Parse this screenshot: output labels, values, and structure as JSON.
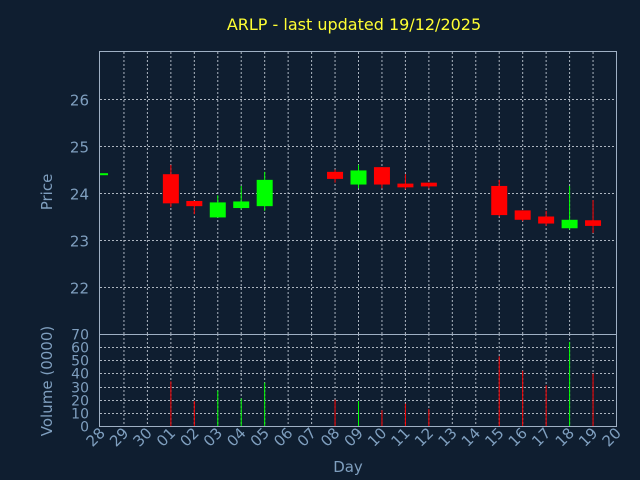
{
  "colors": {
    "background": "#0f1e30",
    "title": "#ffff33",
    "text": "#7f9fbf",
    "up": "#00ff00",
    "down": "#ff0000"
  },
  "chart_data": {
    "type": "candlestick",
    "title": "ARLP - last updated 19/12/2025",
    "xlabel": "Day",
    "ylabel": "Price",
    "volume_label": "Volume (0000)",
    "grid": true,
    "categories": [
      "28",
      "29",
      "30",
      "01",
      "02",
      "03",
      "04",
      "05",
      "06",
      "07",
      "08",
      "09",
      "10",
      "11",
      "12",
      "13",
      "14",
      "15",
      "16",
      "17",
      "18",
      "19",
      "20"
    ],
    "price_ylim": [
      21.0,
      27.0
    ],
    "price_ticks": [
      22,
      23,
      24,
      25,
      26
    ],
    "volume_ylim": [
      0,
      70
    ],
    "volume_ticks": [
      0,
      10,
      20,
      30,
      40,
      50,
      60,
      70
    ],
    "candles": [
      {
        "day": "28",
        "open": 24.4,
        "high": 24.4,
        "low": 24.4,
        "close": 24.4
      },
      {
        "day": "01",
        "open": 24.4,
        "high": 24.6,
        "low": 23.7,
        "close": 23.78
      },
      {
        "day": "02",
        "open": 23.83,
        "high": 23.83,
        "low": 23.55,
        "close": 23.72
      },
      {
        "day": "03",
        "open": 23.48,
        "high": 23.95,
        "low": 23.48,
        "close": 23.8
      },
      {
        "day": "04",
        "open": 23.68,
        "high": 24.15,
        "low": 23.65,
        "close": 23.82
      },
      {
        "day": "05",
        "open": 23.72,
        "high": 24.45,
        "low": 23.62,
        "close": 24.28
      },
      {
        "day": "08",
        "open": 24.45,
        "high": 24.5,
        "low": 24.22,
        "close": 24.3
      },
      {
        "day": "09",
        "open": 24.18,
        "high": 24.6,
        "low": 24.1,
        "close": 24.48
      },
      {
        "day": "10",
        "open": 24.55,
        "high": 24.55,
        "low": 24.1,
        "close": 24.18
      },
      {
        "day": "11",
        "open": 24.2,
        "high": 24.4,
        "low": 24.08,
        "close": 24.12
      },
      {
        "day": "12",
        "open": 24.22,
        "high": 24.22,
        "low": 24.1,
        "close": 24.14
      },
      {
        "day": "15",
        "open": 24.15,
        "high": 24.28,
        "low": 23.5,
        "close": 23.53
      },
      {
        "day": "16",
        "open": 23.63,
        "high": 23.63,
        "low": 23.4,
        "close": 23.43
      },
      {
        "day": "17",
        "open": 23.5,
        "high": 23.62,
        "low": 23.3,
        "close": 23.35
      },
      {
        "day": "18",
        "open": 23.25,
        "high": 24.15,
        "low": 23.22,
        "close": 23.43
      },
      {
        "day": "19",
        "open": 23.42,
        "high": 23.85,
        "low": 23.15,
        "close": 23.3
      }
    ],
    "volume": [
      {
        "day": "01",
        "value": 34,
        "dir": "down"
      },
      {
        "day": "02",
        "value": 19,
        "dir": "down"
      },
      {
        "day": "03",
        "value": 27,
        "dir": "up"
      },
      {
        "day": "04",
        "value": 21,
        "dir": "up"
      },
      {
        "day": "05",
        "value": 33,
        "dir": "up"
      },
      {
        "day": "08",
        "value": 20,
        "dir": "down"
      },
      {
        "day": "09",
        "value": 19,
        "dir": "up"
      },
      {
        "day": "10",
        "value": 12,
        "dir": "down"
      },
      {
        "day": "11",
        "value": 17,
        "dir": "down"
      },
      {
        "day": "12",
        "value": 13,
        "dir": "down"
      },
      {
        "day": "15",
        "value": 53,
        "dir": "down"
      },
      {
        "day": "16",
        "value": 42,
        "dir": "down"
      },
      {
        "day": "17",
        "value": 31,
        "dir": "down"
      },
      {
        "day": "18",
        "value": 64,
        "dir": "up"
      },
      {
        "day": "19",
        "value": 40,
        "dir": "down"
      }
    ]
  }
}
